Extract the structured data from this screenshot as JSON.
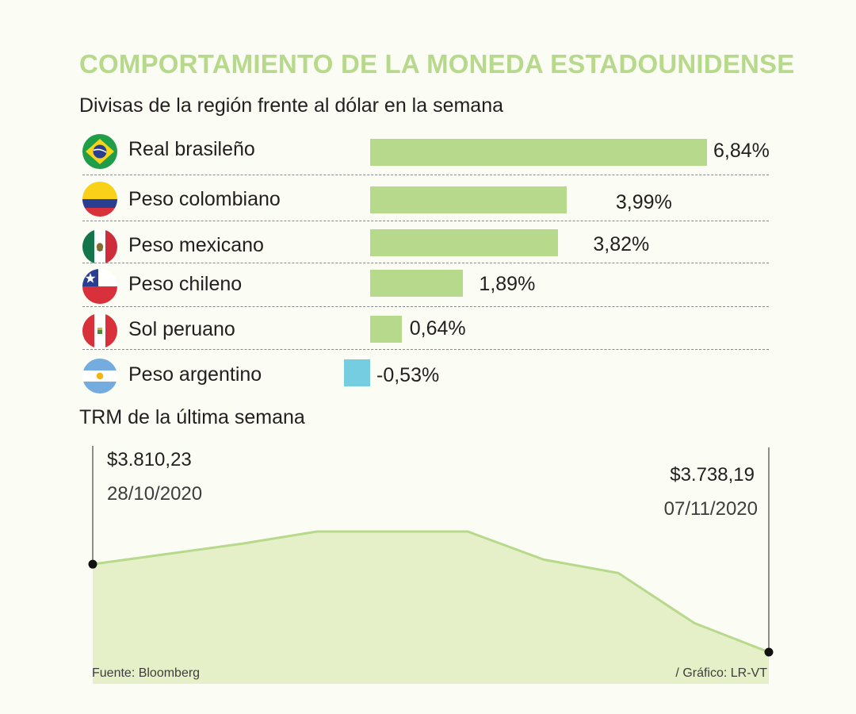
{
  "title": "COMPORTAMIENTO DE LA MONEDA ESTADOUNIDENSE",
  "subtitle": "Divisas de la región frente al dólar en la semana",
  "colors": {
    "positive": "#b7d98b",
    "negative": "#74cde0",
    "area_fill": "#e6f0c8",
    "area_line": "#b7d98b",
    "title": "#b7d98b"
  },
  "chart_data": [
    {
      "type": "bar",
      "title": "Divisas de la región frente al dólar en la semana",
      "categories": [
        "Real brasileño",
        "Peso colombiano",
        "Peso mexicano",
        "Peso chileno",
        "Sol peruano",
        "Peso argentino"
      ],
      "values": [
        6.84,
        3.99,
        3.82,
        1.89,
        0.64,
        -0.53
      ],
      "value_labels": [
        "6,84%",
        "3,99%",
        "3,82%",
        "1,89%",
        "0,64%",
        "-0,53%"
      ],
      "flag_icons": [
        "brazil-flag-icon",
        "colombia-flag-icon",
        "mexico-flag-icon",
        "chile-flag-icon",
        "peru-flag-icon",
        "argentina-flag-icon"
      ],
      "unit": "%"
    },
    {
      "type": "area",
      "title": "TRM de la última semana",
      "x": [
        "28/10/2020",
        "",
        "",
        "",
        "",
        "",
        "",
        "",
        "07/11/2020"
      ],
      "values": [
        3810.23,
        3827,
        3837,
        3837,
        3837,
        3814,
        3803,
        3762,
        3738.19
      ],
      "annotations": [
        {
          "value_label": "$3.810,23",
          "date_label": "28/10/2020",
          "position": "start"
        },
        {
          "value_label": "$3.738,19",
          "date_label": "07/11/2020",
          "position": "end"
        }
      ]
    }
  ],
  "section2_title": "TRM de la última semana",
  "footer": {
    "source": "Fuente: Bloomberg",
    "credit": "/ Gráfico: LR-VT"
  }
}
